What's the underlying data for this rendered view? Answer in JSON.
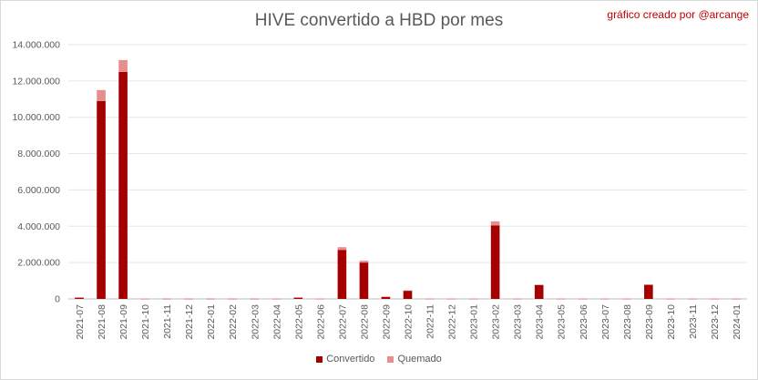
{
  "chart_data": {
    "type": "bar",
    "stacked": true,
    "title": "HIVE convertido a HBD por mes",
    "subtitle": "gráfico creado por @arcange",
    "xlabel": "",
    "ylabel": "",
    "ylim": [
      0,
      14000000
    ],
    "yticks": [
      0,
      2000000,
      4000000,
      6000000,
      8000000,
      10000000,
      12000000,
      14000000
    ],
    "ytick_labels": [
      "0",
      "2.000.000",
      "4.000.000",
      "6.000.000",
      "8.000.000",
      "10.000.000",
      "12.000.000",
      "14.000.000"
    ],
    "grid": true,
    "legend": "bottom",
    "categories": [
      "2021-07",
      "2021-08",
      "2021-09",
      "2021-10",
      "2021-11",
      "2021-12",
      "2022-01",
      "2022-02",
      "2022-03",
      "2022-04",
      "2022-05",
      "2022-06",
      "2022-07",
      "2022-08",
      "2022-09",
      "2022-10",
      "2022-11",
      "2022-12",
      "2023-01",
      "2023-02",
      "2023-03",
      "2023-04",
      "2023-05",
      "2023-06",
      "2023-07",
      "2023-08",
      "2023-09",
      "2023-10",
      "2023-11",
      "2023-12",
      "2024-01"
    ],
    "series": [
      {
        "name": "Convertido",
        "color": "#a50000",
        "values": [
          80000,
          10900000,
          12500000,
          20000,
          15000,
          15000,
          15000,
          15000,
          15000,
          20000,
          80000,
          20000,
          2700000,
          2000000,
          120000,
          450000,
          20000,
          20000,
          20000,
          4050000,
          20000,
          760000,
          20000,
          20000,
          20000,
          20000,
          770000,
          20000,
          20000,
          20000,
          20000
        ]
      },
      {
        "name": "Quemado",
        "color": "#e88d8d",
        "values": [
          5000,
          600000,
          650000,
          5000,
          5000,
          5000,
          5000,
          5000,
          5000,
          5000,
          5000,
          5000,
          150000,
          100000,
          10000,
          20000,
          5000,
          5000,
          5000,
          220000,
          5000,
          30000,
          5000,
          5000,
          5000,
          5000,
          30000,
          5000,
          5000,
          5000,
          5000
        ]
      }
    ]
  }
}
